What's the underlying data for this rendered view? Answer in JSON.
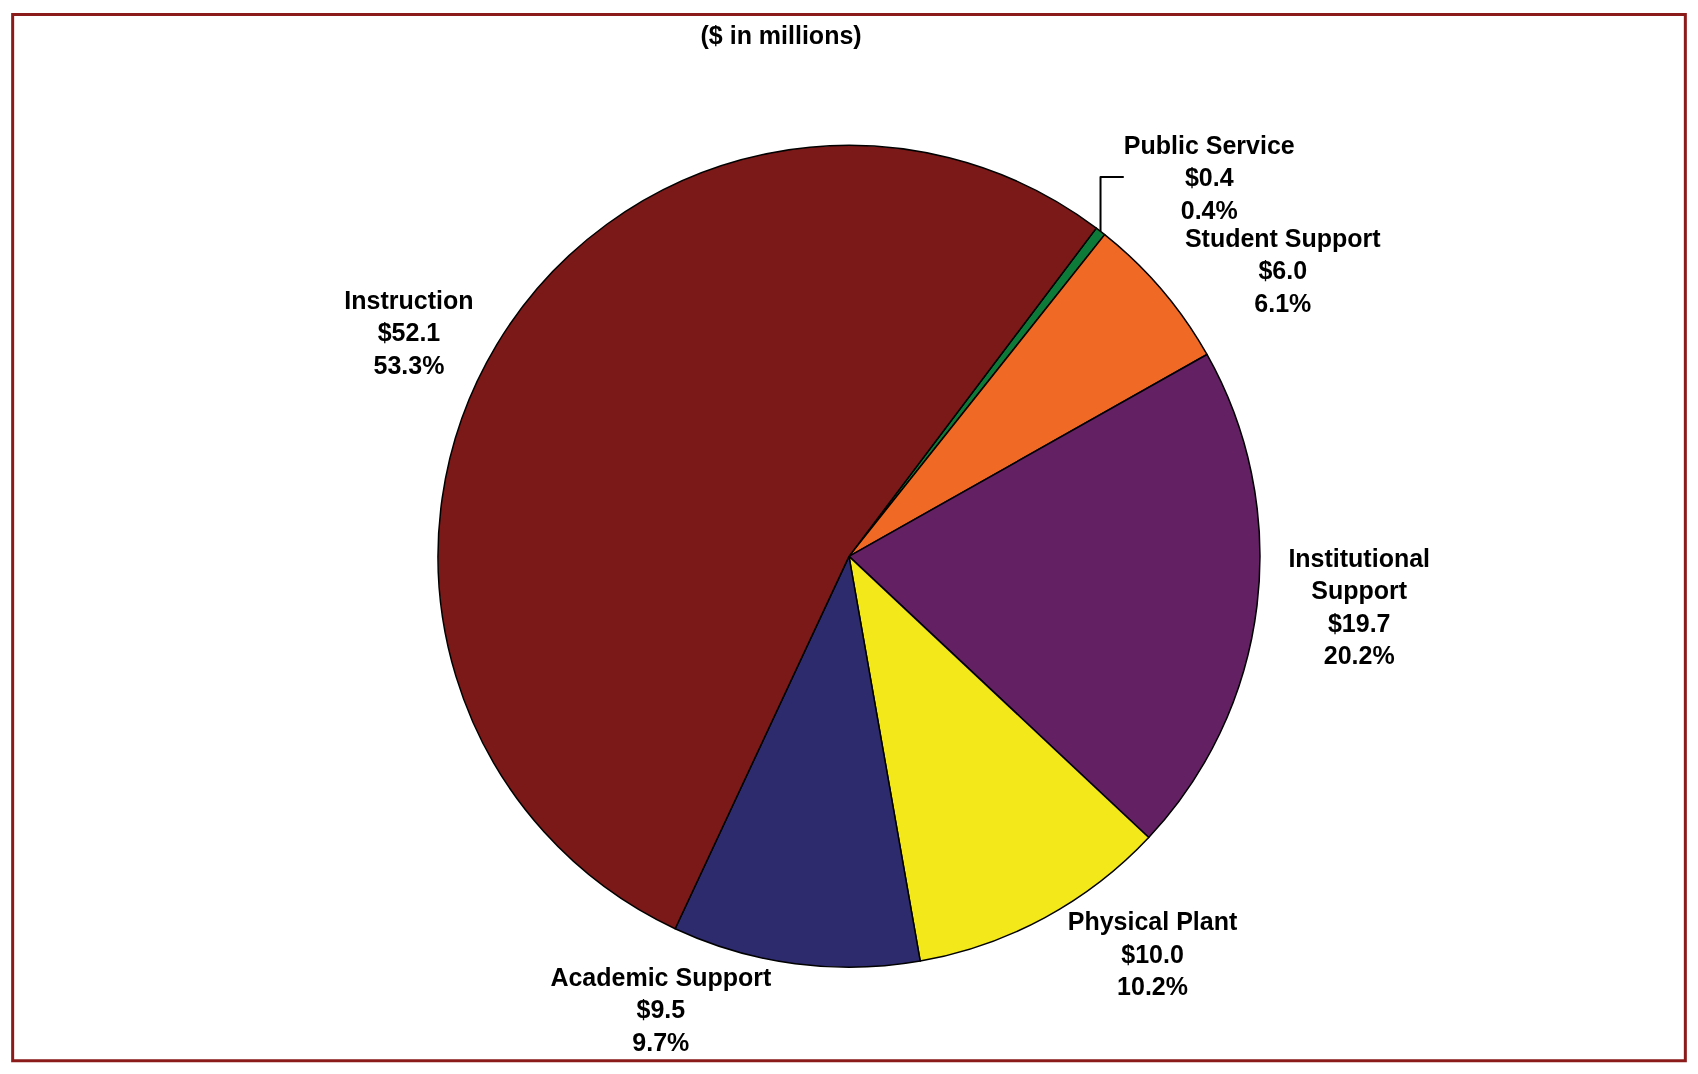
{
  "chart_data": {
    "type": "pie",
    "title": "($ in millions)",
    "categories": [
      "Public Service",
      "Student Support",
      "Institutional\nSupport",
      "Physical Plant",
      "Academic Support",
      "Instruction"
    ],
    "values": [
      0.4,
      6.0,
      19.7,
      10.0,
      9.5,
      52.1
    ],
    "value_labels": [
      "$0.4\n0.4%",
      "$6.0\n6.1%",
      "$19.7\n20.2%",
      "$10.0\n10.2%",
      "$9.5\n9.7%",
      "$52.1\n53.3%"
    ],
    "colors": [
      "#0e7a3a",
      "#f06a26",
      "#632063",
      "#f2e81a",
      "#2d2a6e",
      "#7b1818"
    ],
    "legend": false
  }
}
